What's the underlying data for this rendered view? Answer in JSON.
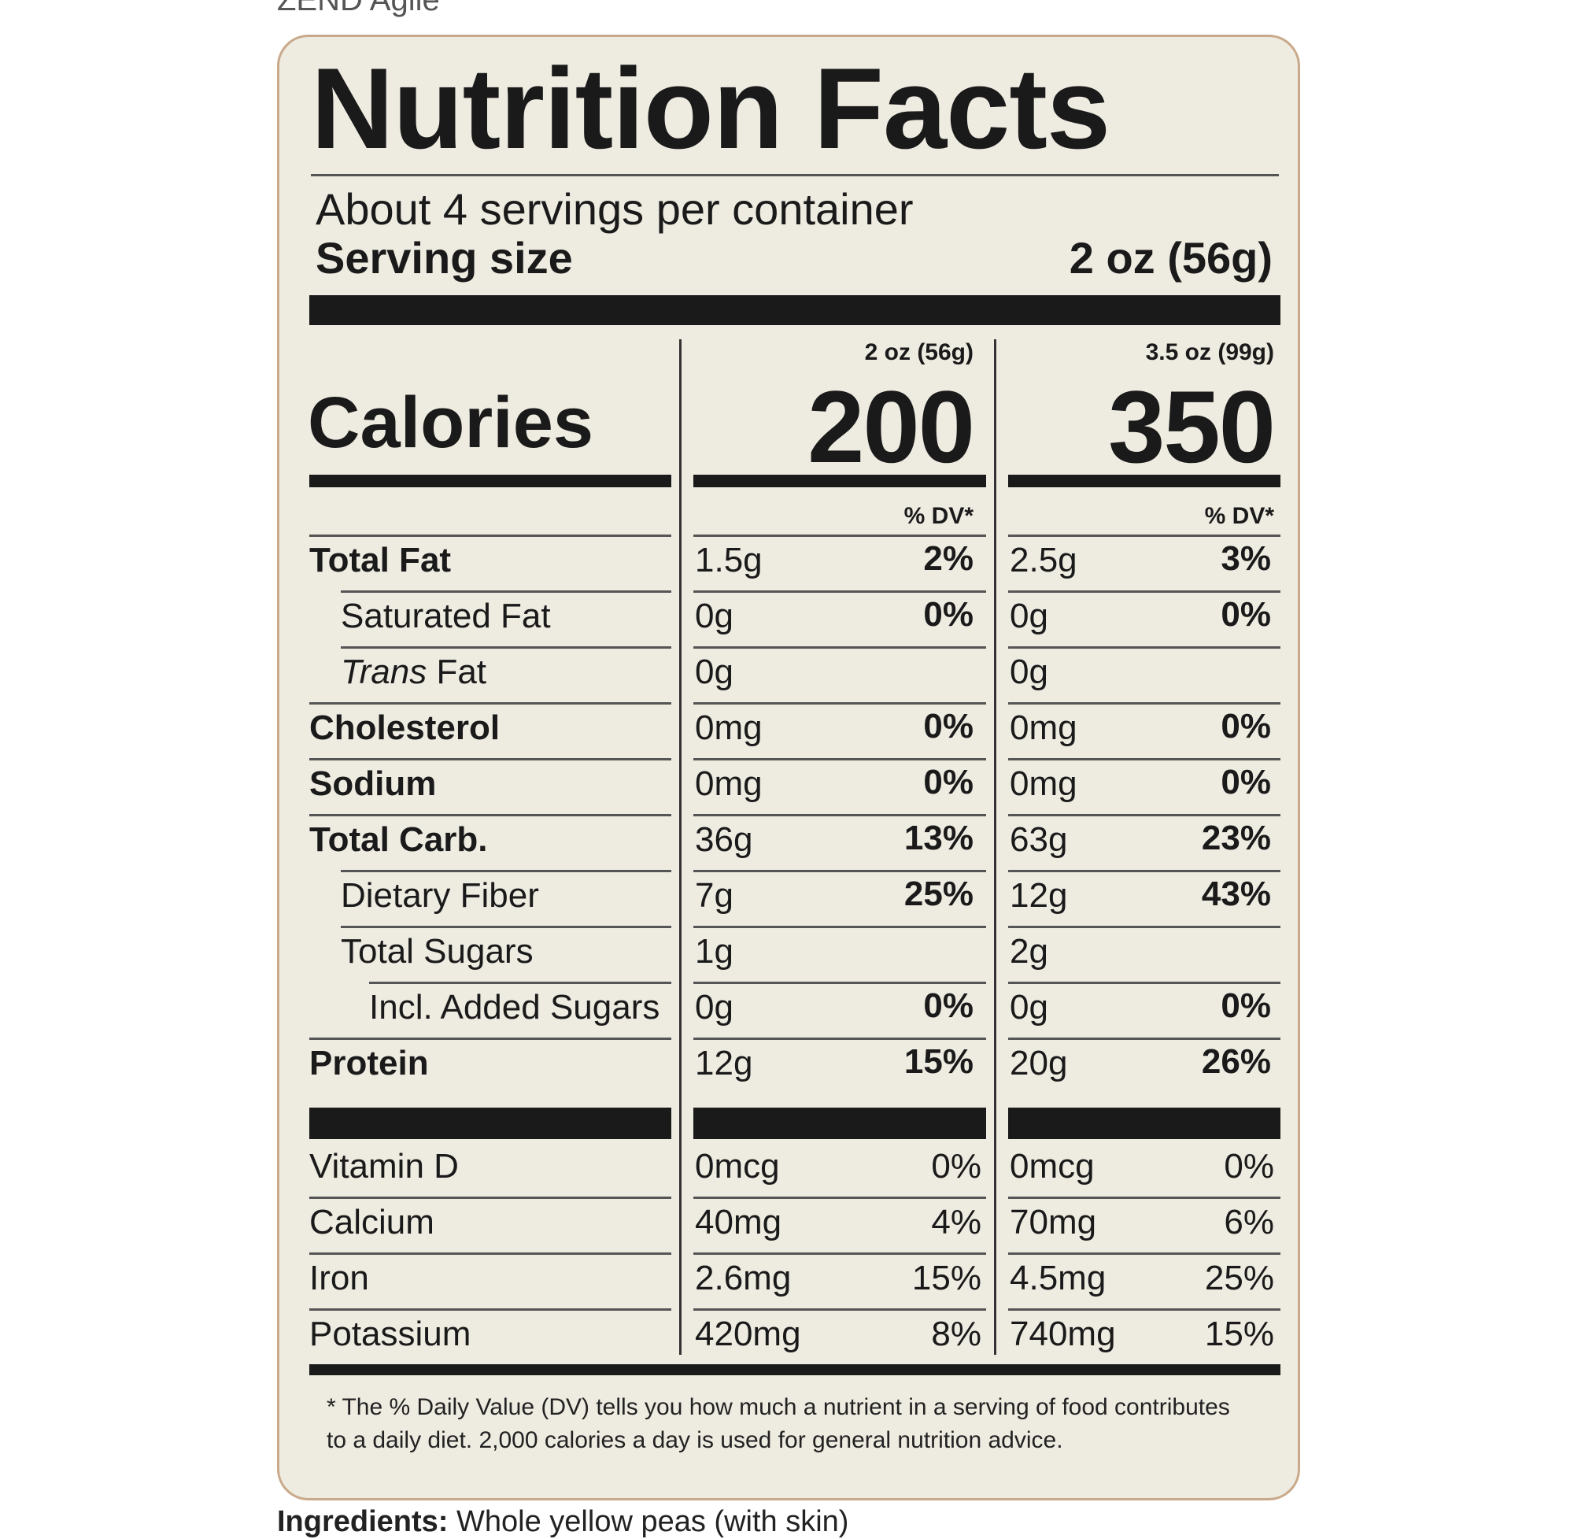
{
  "brand_cropped": "ZEND Agile",
  "ingredients": {
    "label": "Ingredients:",
    "text": "Whole yellow peas (with skin)"
  },
  "label": {
    "title": "Nutrition Facts",
    "servings_per_container": "About 4 servings per container",
    "serving_size_label": "Serving size",
    "serving_size_value": "2 oz (56g)",
    "calories_label": "Calories",
    "columns": [
      {
        "serving": "2 oz (56g)",
        "calories": "200",
        "dv_header": "% DV*"
      },
      {
        "serving": "3.5 oz (99g)",
        "calories": "350",
        "dv_header": "% DV*"
      }
    ],
    "nutrients": [
      {
        "name": "Total Fat",
        "bold": true,
        "indent": 0,
        "c1_amt": "1.5g",
        "c1_dv": "2%",
        "c2_amt": "2.5g",
        "c2_dv": "3%"
      },
      {
        "name": "Saturated Fat",
        "bold": false,
        "indent": 1,
        "c1_amt": "0g",
        "c1_dv": "0%",
        "c2_amt": "0g",
        "c2_dv": "0%"
      },
      {
        "name_italic": "Trans",
        "name": " Fat",
        "bold": false,
        "indent": 1,
        "c1_amt": "0g",
        "c1_dv": "",
        "c2_amt": "0g",
        "c2_dv": ""
      },
      {
        "name": "Cholesterol",
        "bold": true,
        "indent": 0,
        "c1_amt": "0mg",
        "c1_dv": "0%",
        "c2_amt": "0mg",
        "c2_dv": "0%"
      },
      {
        "name": "Sodium",
        "bold": true,
        "indent": 0,
        "c1_amt": "0mg",
        "c1_dv": "0%",
        "c2_amt": "0mg",
        "c2_dv": "0%"
      },
      {
        "name": "Total Carb.",
        "bold": true,
        "indent": 0,
        "c1_amt": "36g",
        "c1_dv": "13%",
        "c2_amt": "63g",
        "c2_dv": "23%"
      },
      {
        "name": "Dietary Fiber",
        "bold": false,
        "indent": 1,
        "c1_amt": "7g",
        "c1_dv": "25%",
        "c2_amt": "12g",
        "c2_dv": "43%"
      },
      {
        "name": "Total Sugars",
        "bold": false,
        "indent": 1,
        "c1_amt": "1g",
        "c1_dv": "",
        "c2_amt": "2g",
        "c2_dv": ""
      },
      {
        "name": "Incl. Added Sugars",
        "bold": false,
        "indent": 2,
        "c1_amt": "0g",
        "c1_dv": "0%",
        "c2_amt": "0g",
        "c2_dv": "0%"
      },
      {
        "name": "Protein",
        "bold": true,
        "indent": 0,
        "c1_amt": "12g",
        "c1_dv": "15%",
        "c2_amt": "20g",
        "c2_dv": "26%"
      }
    ],
    "vitamins": [
      {
        "name": "Vitamin D",
        "c1_amt": "0mcg",
        "c1_dv": "0%",
        "c2_amt": "0mcg",
        "c2_dv": "0%"
      },
      {
        "name": "Calcium",
        "c1_amt": "40mg",
        "c1_dv": "4%",
        "c2_amt": "70mg",
        "c2_dv": "6%"
      },
      {
        "name": "Iron",
        "c1_amt": "2.6mg",
        "c1_dv": "15%",
        "c2_amt": "4.5mg",
        "c2_dv": "25%"
      },
      {
        "name": "Potassium",
        "c1_amt": "420mg",
        "c1_dv": "8%",
        "c2_amt": "740mg",
        "c2_dv": "15%"
      }
    ],
    "footnote": "* The % Daily Value (DV) tells you how much a nutrient in a serving of food contributes to a daily diet. 2,000 calories a day is used for general nutrition advice."
  }
}
